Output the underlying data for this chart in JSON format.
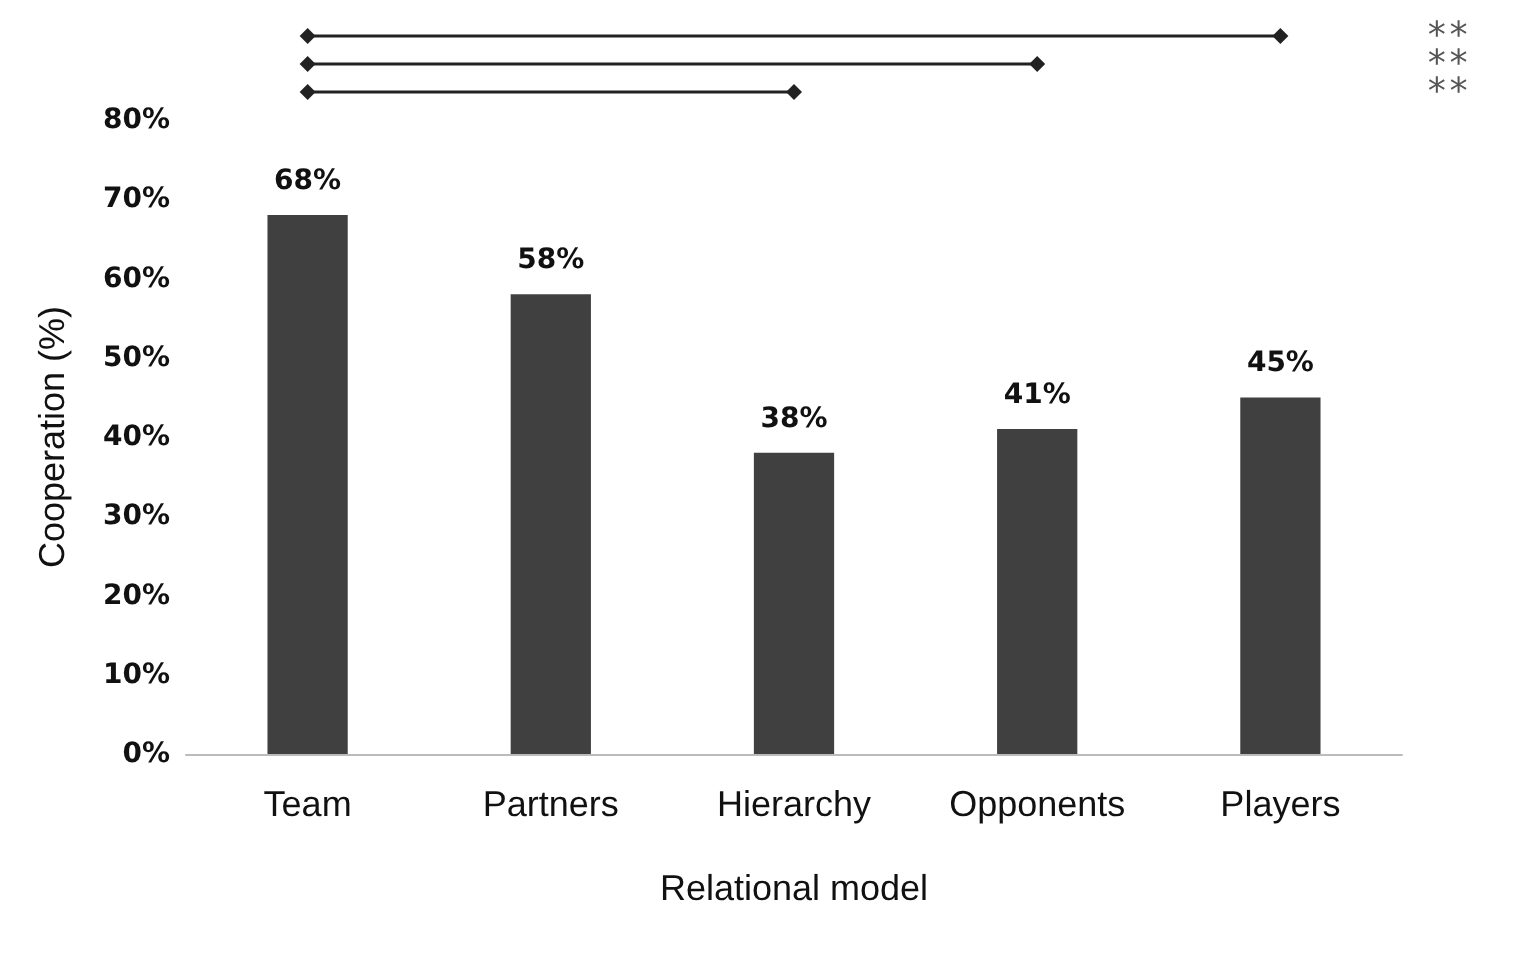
{
  "chart_data": {
    "type": "bar",
    "xlabel": "Relational model",
    "ylabel": "Cooperation (%)",
    "categories": [
      "Team",
      "Partners",
      "Hierarchy",
      "Opponents",
      "Players"
    ],
    "values": [
      68,
      58,
      38,
      41,
      45
    ],
    "color": "#404040",
    "value_labels": [
      "68%",
      "58%",
      "38%",
      "41%",
      "45%"
    ],
    "ylim": [
      0,
      80
    ],
    "yticks": [
      {
        "value": 0,
        "label": "0%"
      },
      {
        "value": 10,
        "label": "10%"
      },
      {
        "value": 20,
        "label": "20%"
      },
      {
        "value": 30,
        "label": "30%"
      },
      {
        "value": 40,
        "label": "40%"
      },
      {
        "value": 50,
        "label": "50%"
      },
      {
        "value": 60,
        "label": "60%"
      },
      {
        "value": 70,
        "label": "70%"
      },
      {
        "value": 80,
        "label": "80%"
      }
    ],
    "annotations": [
      "**",
      "**",
      "**"
    ],
    "grid": false
  }
}
